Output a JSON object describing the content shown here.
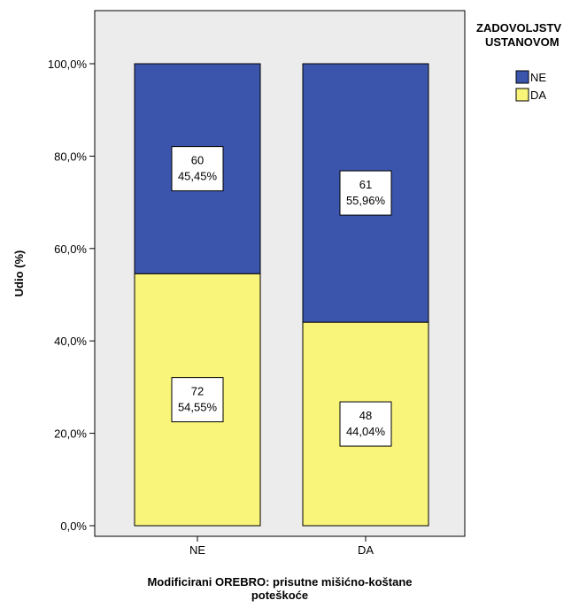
{
  "chart_data": {
    "type": "bar",
    "stacked": true,
    "percent": true,
    "categories": [
      "NE",
      "DA"
    ],
    "series": [
      {
        "name": "DA",
        "color": "#f8f57a",
        "counts": [
          72,
          48
        ],
        "values": [
          54.55,
          44.04
        ],
        "labels": [
          "54,55%",
          "44,04%"
        ]
      },
      {
        "name": "NE",
        "color": "#3b55ac",
        "counts": [
          60,
          61
        ],
        "values": [
          45.45,
          55.96
        ],
        "labels": [
          "45,45%",
          "55,96%"
        ]
      }
    ],
    "xlabel": "Modificirani OREBRO: prisutne mišićno-koštane poteškoće",
    "xlabel_lines": [
      "Modificirani OREBRO: prisutne mišićno-koštane",
      "poteškoće"
    ],
    "ylabel": "Udio (%)",
    "ylim": [
      0,
      100
    ],
    "yticks": [
      0,
      20,
      40,
      60,
      80,
      100
    ],
    "ytick_labels": [
      "0,0%",
      "20,0%",
      "40,0%",
      "60,0%",
      "80,0%",
      "100,0%"
    ],
    "legend": {
      "title_lines": [
        "ZADOVOLJSTV",
        "USTANOVOM"
      ],
      "entries": [
        {
          "label": "NE",
          "color": "#3b55ac"
        },
        {
          "label": "DA",
          "color": "#f8f57a"
        }
      ],
      "placement": "top-right"
    },
    "background": "#ececec",
    "grid": false
  }
}
